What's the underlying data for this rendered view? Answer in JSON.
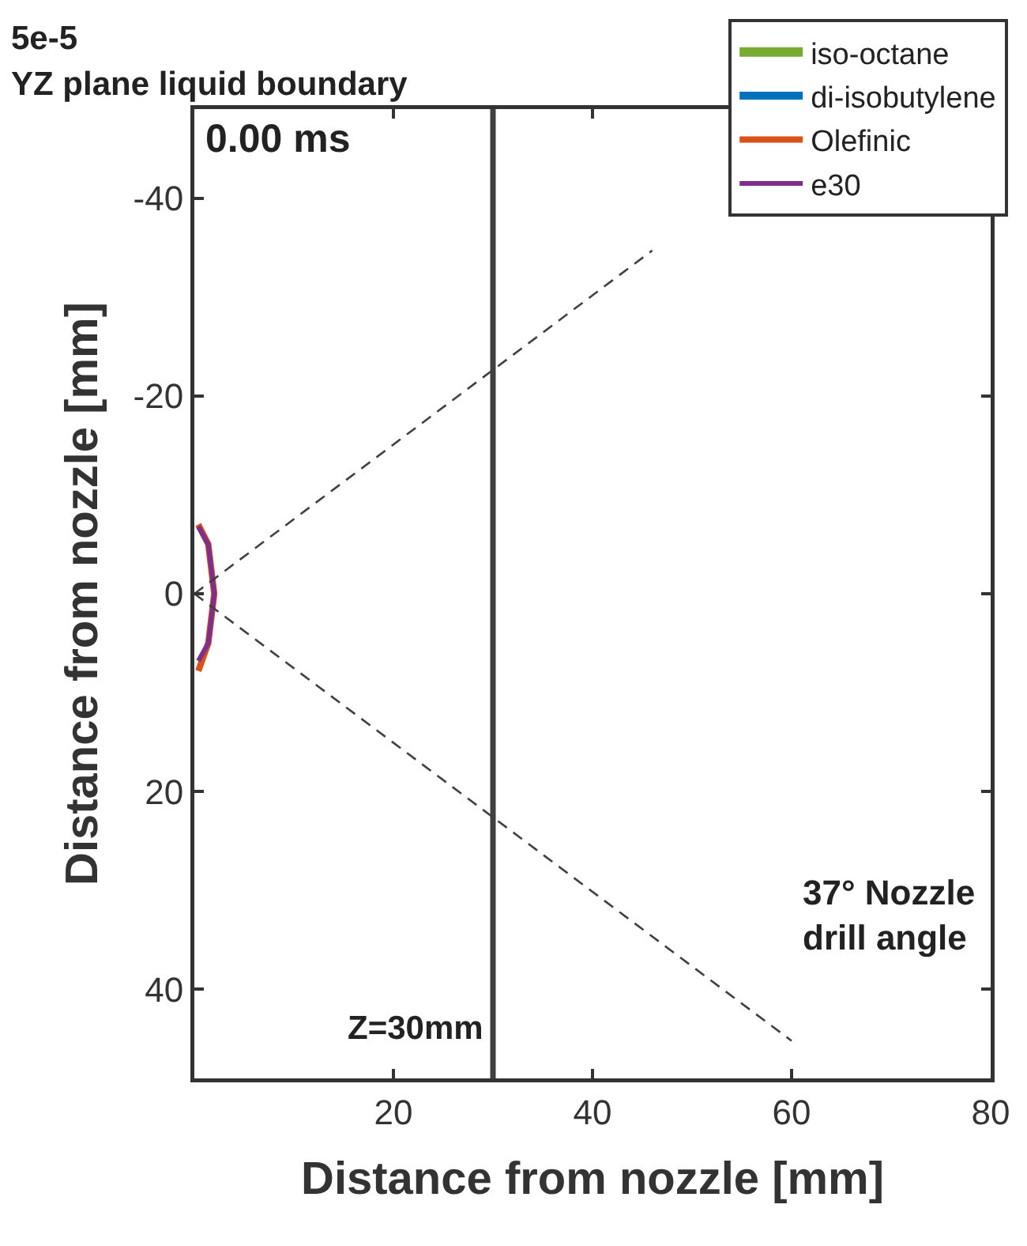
{
  "chart_data": {
    "type": "line",
    "title": "5e-5",
    "subtitle": "YZ plane liquid boundary",
    "xlabel": "Distance from nozzle [mm]",
    "ylabel": "Distance from nozzle [mm]",
    "xlim": [
      0,
      80
    ],
    "xticks": [
      20,
      40,
      60,
      80
    ],
    "ylim": [
      49,
      -49
    ],
    "yticks": [
      -40,
      -20,
      0,
      20,
      40
    ],
    "grid": false,
    "legend": "top right",
    "marker": "none",
    "series": [
      {
        "name": "iso-octane",
        "color": "#77ac30",
        "x": [
          null
        ],
        "values": [
          null
        ]
      },
      {
        "name": "di-isobutylene",
        "color": "#0072bd",
        "x": [
          null
        ],
        "values": [
          null
        ]
      },
      {
        "name": "Olefinic",
        "color": "#d95319",
        "x": [
          0.4,
          1.4,
          2,
          1.4,
          0.4
        ],
        "values": [
          -7,
          -5,
          0,
          5,
          7.8
        ]
      },
      {
        "name": "e30",
        "color": "#7e2f8e",
        "x": [
          0.4,
          1.4,
          2,
          1.4,
          0.4
        ],
        "values": [
          -6.8,
          -5,
          0,
          5,
          6.8
        ]
      },
      {
        "color": "#404040",
        "line_style": "dashed",
        "x": [
          0,
          46
        ],
        "values": [
          0,
          -34.7
        ]
      },
      {
        "color": "#404040",
        "line_style": "dashed",
        "x": [
          0,
          60
        ],
        "values": [
          0,
          45.2
        ]
      }
    ],
    "ref_lines": [
      {
        "axis": "x",
        "value": 30,
        "label": "Z=30mm",
        "color": "#404040"
      }
    ],
    "annotations": [
      "0.00 ms",
      "37° Nozzle\ndrill angle"
    ]
  }
}
